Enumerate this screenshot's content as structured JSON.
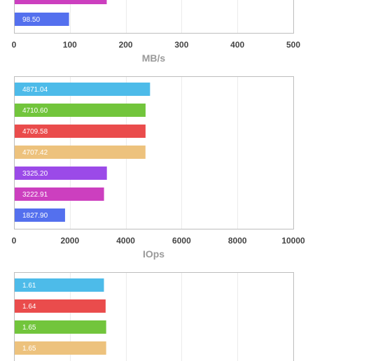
{
  "chart_data": [
    {
      "type": "bar",
      "orientation": "horizontal",
      "xlabel": "MB/s",
      "xlim": [
        0,
        500
      ],
      "ticks": [
        "0",
        "100",
        "200",
        "300",
        "400",
        "500"
      ],
      "bars": [
        {
          "value": 166,
          "label": "",
          "color": "#cc3fbf"
        },
        {
          "value": 98.5,
          "label": "98.50",
          "color": "#5470ee"
        }
      ],
      "grid": true
    },
    {
      "type": "bar",
      "orientation": "horizontal",
      "xlabel": "IOps",
      "xlim": [
        0,
        10000
      ],
      "ticks": [
        "0",
        "2000",
        "4000",
        "6000",
        "8000",
        "10000"
      ],
      "bars": [
        {
          "value": 4871.04,
          "label": "4871.04",
          "color": "#4dbbe9"
        },
        {
          "value": 4710.6,
          "label": "4710.60",
          "color": "#72c53c"
        },
        {
          "value": 4709.58,
          "label": "4709.58",
          "color": "#ea4c4c"
        },
        {
          "value": 4707.42,
          "label": "4707.42",
          "color": "#edc27d"
        },
        {
          "value": 3325.2,
          "label": "3325.20",
          "color": "#9b4ae8"
        },
        {
          "value": 3222.91,
          "label": "3222.91",
          "color": "#cc3fbf"
        },
        {
          "value": 1827.9,
          "label": "1827.90",
          "color": "#5470ee"
        }
      ],
      "grid": true
    },
    {
      "type": "bar",
      "orientation": "horizontal",
      "xlabel": "",
      "xlim": [
        0,
        5
      ],
      "ticks": [],
      "bars": [
        {
          "value": 1.61,
          "label": "1.61",
          "color": "#4dbbe9"
        },
        {
          "value": 1.64,
          "label": "1.64",
          "color": "#ea4c4c"
        },
        {
          "value": 1.65,
          "label": "1.65",
          "color": "#72c53c"
        },
        {
          "value": 1.65,
          "label": "1.65",
          "color": "#edc27d"
        }
      ],
      "grid": true
    }
  ]
}
